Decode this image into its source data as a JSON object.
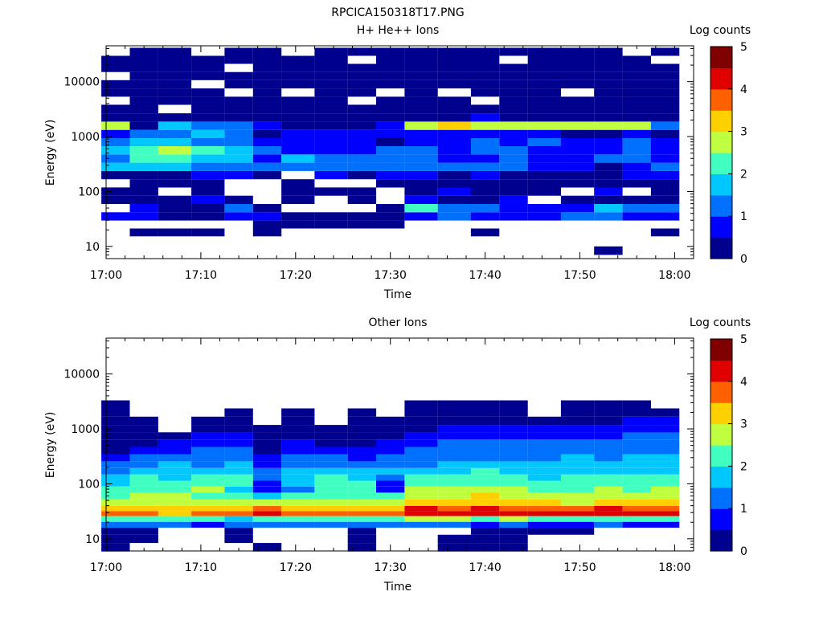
{
  "figure": {
    "title": "RPCICA150318T17.PNG"
  },
  "palette": [
    "#00008f",
    "#0000ff",
    "#0070ff",
    "#00c8ff",
    "#40ffc0",
    "#c0ff40",
    "#ffd000",
    "#ff6000",
    "#e00000",
    "#800000"
  ],
  "chart_data": [
    {
      "type": "heatmap",
      "title": "H+ He++ Ions",
      "xlabel": "Time",
      "ylabel": "Energy (eV)",
      "x_ticks": [
        "17:00",
        "17:10",
        "17:20",
        "17:30",
        "17:40",
        "17:50",
        "18:00"
      ],
      "y_ticks": [
        "10",
        "100",
        "1000",
        "10000"
      ],
      "y_scale": "log",
      "ylim": [
        6,
        45000
      ],
      "xlim": [
        "17:00",
        "18:02"
      ],
      "colorbar": {
        "label": "Log counts",
        "ticks": [
          "0",
          "1",
          "2",
          "3",
          "4",
          "5"
        ],
        "range": [
          0,
          5
        ]
      },
      "time_columns": [
        "17:01",
        "17:04",
        "17:07",
        "17:11",
        "17:14",
        "17:17",
        "17:20",
        "17:24",
        "17:27",
        "17:30",
        "17:33",
        "17:37",
        "17:40",
        "17:43",
        "17:46",
        "17:50",
        "17:53",
        "17:56",
        "17:59"
      ],
      "energy_bins_eV": [
        18,
        25,
        35,
        50,
        70,
        100,
        140,
        200,
        280,
        400,
        560,
        800,
        1100,
        1600,
        2200,
        3200,
        4500,
        6300,
        9000,
        12600,
        17800,
        25000,
        35000
      ],
      "log_counts": [
        [
          null,
          0.0,
          0.0,
          0.0,
          null,
          0.0,
          null,
          null,
          null,
          null,
          null,
          null,
          0.0,
          null,
          null,
          null,
          null,
          null,
          0.0
        ],
        [
          null,
          null,
          null,
          null,
          null,
          0.0,
          0.0,
          0.0,
          0.0,
          0.0,
          null,
          null,
          null,
          null,
          null,
          null,
          null,
          null,
          null
        ],
        [
          0.8,
          0.6,
          0.2,
          0.0,
          0.8,
          0.5,
          0.0,
          0.0,
          0.3,
          0.4,
          0.8,
          1.0,
          0.9,
          0.9,
          0.6,
          1.0,
          1.2,
          0.7,
          0.8
        ],
        [
          null,
          0.9,
          0.3,
          0.2,
          1.3,
          0.0,
          null,
          null,
          null,
          0.0,
          2.0,
          1.4,
          1.2,
          0.8,
          0.9,
          0.7,
          1.6,
          1.0,
          1.3
        ],
        [
          0.4,
          0.0,
          0.4,
          0.5,
          0.0,
          null,
          0.2,
          null,
          0.3,
          null,
          0.5,
          0.3,
          0.0,
          0.5,
          null,
          0.0,
          0.2,
          0.0,
          0.3
        ],
        [
          0.0,
          0.0,
          null,
          0.0,
          null,
          null,
          0.0,
          0.0,
          0.0,
          null,
          0.0,
          0.5,
          0.0,
          0.4,
          0.0,
          null,
          0.5,
          null,
          0.0
        ],
        [
          null,
          0.0,
          0.0,
          0.0,
          null,
          null,
          0.0,
          null,
          null,
          0.0,
          0.3,
          0.0,
          0.2,
          0.0,
          0.0,
          0.0,
          0.0,
          0.0,
          0.0
        ],
        [
          0.2,
          0.0,
          0.4,
          0.8,
          0.5,
          0.0,
          null,
          0.6,
          0.0,
          0.5,
          0.5,
          0.3,
          0.7,
          0.2,
          0.3,
          0.0,
          0.4,
          0.8,
          0.5
        ],
        [
          1.5,
          1.8,
          1.6,
          1.2,
          1.0,
          1.2,
          1.0,
          1.0,
          1.2,
          1.2,
          1.0,
          1.0,
          1.2,
          1.0,
          0.9,
          0.5,
          0.4,
          0.9,
          1.0
        ],
        [
          1.2,
          2.2,
          2.3,
          1.5,
          1.6,
          0.6,
          1.5,
          1.1,
          1.1,
          1.0,
          1.2,
          0.8,
          0.9,
          1.2,
          0.5,
          0.7,
          1.0,
          1.3,
          0.5
        ],
        [
          1.5,
          2.4,
          2.6,
          2.0,
          1.6,
          1.2,
          0.8,
          0.6,
          0.8,
          1.2,
          1.0,
          0.9,
          1.0,
          1.0,
          0.7,
          0.6,
          0.8,
          1.1,
          0.6
        ],
        [
          1.0,
          1.5,
          1.8,
          1.3,
          1.1,
          0.9,
          0.5,
          0.6,
          0.8,
          0.4,
          0.9,
          0.9,
          1.3,
          0.9,
          1.0,
          0.7,
          0.6,
          1.3,
          0.5
        ],
        [
          0.9,
          1.1,
          1.4,
          1.8,
          1.2,
          0.4,
          0.6,
          0.8,
          0.6,
          0.5,
          0.9,
          0.7,
          0.8,
          0.6,
          0.5,
          0.0,
          0.4,
          0.5,
          0.0
        ],
        [
          2.8,
          0.0,
          1.5,
          1.4,
          1.3,
          0.6,
          0.4,
          0.3,
          0.3,
          0.6,
          2.9,
          3.0,
          2.7,
          2.5,
          2.5,
          2.9,
          2.6,
          2.7,
          1.2
        ],
        [
          0.0,
          0.0,
          0.0,
          0.0,
          0.0,
          0.0,
          0.0,
          0.0,
          0.0,
          0.0,
          0.0,
          0.0,
          0.6,
          0.0,
          0.0,
          0.0,
          0.0,
          0.0,
          0.0
        ],
        [
          0.0,
          0.0,
          null,
          0.0,
          0.0,
          0.0,
          0.0,
          0.0,
          0.0,
          0.0,
          0.0,
          0.0,
          0.0,
          0.0,
          0.0,
          0.0,
          0.0,
          0.0,
          0.0
        ],
        [
          null,
          0.0,
          0.0,
          0.0,
          0.0,
          0.0,
          0.0,
          0.0,
          null,
          0.0,
          0.0,
          0.0,
          null,
          0.0,
          0.0,
          0.0,
          0.0,
          0.0,
          0.0
        ],
        [
          0.0,
          0.0,
          0.0,
          0.0,
          null,
          0.0,
          null,
          0.0,
          0.0,
          null,
          0.0,
          null,
          0.0,
          0.0,
          0.0,
          null,
          0.0,
          0.0,
          0.0
        ],
        [
          0.0,
          0.0,
          0.0,
          null,
          0.0,
          0.0,
          0.0,
          0.0,
          0.0,
          0.0,
          0.0,
          0.0,
          0.0,
          0.0,
          0.0,
          0.0,
          0.0,
          0.0,
          0.0
        ],
        [
          null,
          0.0,
          0.0,
          0.0,
          0.0,
          0.0,
          0.0,
          0.0,
          0.0,
          0.0,
          0.0,
          0.0,
          0.0,
          0.0,
          0.0,
          0.0,
          0.0,
          0.0,
          0.0
        ],
        [
          0.0,
          0.0,
          0.0,
          0.0,
          null,
          0.0,
          0.0,
          0.0,
          0.0,
          0.0,
          0.0,
          0.0,
          0.0,
          0.0,
          0.0,
          0.0,
          0.0,
          0.0,
          0.0
        ],
        [
          0.0,
          0.0,
          0.0,
          0.0,
          0.0,
          0.0,
          0.0,
          0.0,
          null,
          0.0,
          0.0,
          0.0,
          0.0,
          null,
          0.0,
          0.0,
          0.0,
          0.0,
          null
        ],
        [
          null,
          0.0,
          0.0,
          null,
          0.0,
          0.0,
          null,
          0.0,
          0.0,
          0.0,
          0.0,
          0.0,
          0.0,
          0.0,
          0.0,
          0.0,
          0.0,
          null,
          0.0
        ]
      ],
      "extra_cells": [
        {
          "time": "17:53",
          "energy_bins_eV": [
            7,
            10
          ],
          "log_counts": 0.0
        }
      ]
    },
    {
      "type": "heatmap",
      "title": "Other Ions",
      "xlabel": "Time",
      "ylabel": "Energy (eV)",
      "x_ticks": [
        "17:00",
        "17:10",
        "17:20",
        "17:30",
        "17:40",
        "17:50",
        "18:00"
      ],
      "y_ticks": [
        "10",
        "100",
        "1000",
        "10000"
      ],
      "y_scale": "log",
      "ylim": [
        6,
        45000
      ],
      "xlim": [
        "17:00",
        "18:02"
      ],
      "colorbar": {
        "label": "Log counts",
        "ticks": [
          "0",
          "1",
          "2",
          "3",
          "4",
          "5"
        ],
        "range": [
          0,
          5
        ]
      },
      "time_columns": [
        "17:01",
        "17:04",
        "17:07",
        "17:11",
        "17:14",
        "17:17",
        "17:20",
        "17:24",
        "17:27",
        "17:30",
        "17:33",
        "17:37",
        "17:40",
        "17:43",
        "17:46",
        "17:50",
        "17:53",
        "17:56",
        "17:59"
      ],
      "energy_bins_eV": [
        7,
        10,
        14,
        18,
        23,
        29,
        35,
        45,
        60,
        80,
        100,
        130,
        170,
        220,
        300,
        400,
        550,
        750,
        1000,
        1400,
        2000,
        2800
      ],
      "log_counts": [
        [
          0.0,
          null,
          null,
          null,
          null,
          0.0,
          null,
          null,
          0.0,
          null,
          null,
          0.0,
          0.0,
          0.0,
          null,
          null,
          null,
          null,
          null
        ],
        [
          0.0,
          0.0,
          null,
          null,
          0.0,
          null,
          null,
          null,
          0.0,
          null,
          null,
          0.0,
          0.0,
          0.0,
          null,
          null,
          null,
          null,
          null
        ],
        [
          0.0,
          0.0,
          null,
          null,
          0.0,
          null,
          null,
          null,
          0.0,
          null,
          null,
          null,
          0.0,
          0.0,
          0.0,
          0.0,
          null,
          null,
          null
        ],
        [
          1.0,
          1.0,
          1.0,
          0.8,
          1.0,
          1.2,
          1.0,
          1.2,
          1.0,
          1.0,
          1.2,
          1.0,
          0.8,
          1.0,
          0.8,
          0.8,
          1.0,
          0.8,
          0.8
        ],
        [
          2.0,
          2.0,
          2.2,
          2.0,
          1.8,
          2.0,
          2.0,
          2.2,
          2.0,
          2.2,
          2.5,
          2.5,
          2.4,
          2.5,
          2.2,
          2.2,
          2.4,
          2.2,
          2.2
        ],
        [
          3.8,
          3.6,
          3.4,
          3.6,
          3.5,
          4.0,
          3.6,
          3.8,
          3.6,
          3.5,
          4.2,
          4.2,
          4.0,
          4.3,
          4.0,
          4.0,
          4.2,
          4.0,
          4.0
        ],
        [
          3.2,
          3.4,
          3.2,
          3.0,
          3.3,
          3.5,
          3.2,
          3.0,
          3.2,
          3.4,
          4.0,
          3.8,
          4.0,
          3.8,
          3.8,
          3.6,
          4.2,
          3.8,
          3.6
        ],
        [
          2.6,
          2.8,
          2.8,
          2.6,
          2.6,
          2.8,
          2.6,
          2.5,
          2.6,
          2.8,
          3.2,
          3.2,
          3.4,
          3.0,
          3.0,
          2.8,
          3.2,
          3.2,
          3.0
        ],
        [
          2.4,
          2.6,
          2.5,
          2.4,
          2.4,
          1.5,
          2.2,
          2.4,
          2.4,
          2.0,
          2.8,
          2.8,
          3.0,
          2.8,
          2.6,
          2.6,
          2.8,
          2.8,
          2.8
        ],
        [
          2.0,
          2.2,
          2.4,
          2.6,
          1.8,
          0.8,
          1.2,
          2.0,
          2.2,
          0.8,
          2.6,
          2.6,
          2.6,
          2.6,
          2.4,
          2.4,
          2.6,
          2.4,
          2.6
        ],
        [
          1.8,
          2.2,
          2.2,
          2.4,
          2.4,
          0.6,
          1.5,
          2.2,
          2.0,
          0.6,
          2.4,
          2.4,
          2.4,
          2.2,
          2.2,
          2.0,
          2.4,
          2.2,
          2.2
        ],
        [
          1.5,
          2.0,
          1.8,
          2.2,
          2.0,
          1.2,
          1.8,
          2.0,
          1.8,
          1.0,
          2.0,
          2.2,
          2.2,
          2.0,
          1.8,
          2.0,
          2.2,
          2.0,
          2.0
        ],
        [
          1.2,
          1.6,
          1.6,
          1.8,
          1.8,
          1.0,
          1.5,
          1.6,
          1.6,
          1.5,
          1.8,
          1.8,
          2.0,
          1.8,
          1.6,
          1.8,
          1.8,
          1.8,
          1.8
        ],
        [
          1.0,
          1.3,
          1.5,
          1.4,
          1.5,
          0.8,
          1.2,
          1.3,
          1.2,
          1.2,
          1.4,
          1.6,
          1.6,
          1.6,
          1.5,
          1.6,
          1.6,
          1.6,
          1.6
        ],
        [
          0.5,
          1.0,
          1.0,
          1.2,
          1.2,
          0.6,
          1.0,
          1.0,
          0.8,
          1.0,
          1.2,
          1.4,
          1.4,
          1.4,
          1.3,
          1.5,
          1.4,
          1.5,
          1.5
        ],
        [
          0.3,
          0.6,
          0.8,
          1.0,
          1.0,
          0.4,
          0.8,
          0.6,
          0.6,
          0.8,
          1.0,
          1.2,
          1.2,
          1.2,
          1.1,
          1.3,
          1.2,
          1.4,
          1.4
        ],
        [
          0.2,
          0.4,
          0.6,
          0.8,
          0.8,
          0.3,
          0.6,
          0.4,
          0.4,
          0.5,
          0.8,
          1.0,
          1.0,
          1.0,
          1.0,
          1.0,
          1.0,
          1.2,
          1.2
        ],
        [
          0.0,
          0.2,
          0.4,
          0.5,
          0.6,
          0.2,
          0.4,
          0.2,
          0.3,
          0.3,
          0.6,
          0.8,
          0.8,
          0.8,
          0.8,
          0.8,
          0.8,
          1.0,
          1.0
        ],
        [
          0.0,
          0.0,
          null,
          0.3,
          0.4,
          0.0,
          0.2,
          0.0,
          0.2,
          0.2,
          0.4,
          0.6,
          0.6,
          0.6,
          0.6,
          0.6,
          0.6,
          0.8,
          0.8
        ],
        [
          0.0,
          0.0,
          null,
          0.0,
          0.2,
          null,
          0.0,
          null,
          0.0,
          0.0,
          0.0,
          0.3,
          0.4,
          0.3,
          0.2,
          0.4,
          0.4,
          0.6,
          0.6
        ],
        [
          0.0,
          null,
          null,
          null,
          0.0,
          null,
          0.0,
          null,
          0.0,
          null,
          0.0,
          0.0,
          0.0,
          0.0,
          null,
          0.0,
          0.0,
          0.3,
          0.3
        ],
        [
          0.0,
          null,
          null,
          null,
          null,
          null,
          null,
          null,
          null,
          null,
          0.0,
          0.0,
          0.0,
          0.0,
          null,
          0.0,
          0.0,
          0.0,
          null
        ]
      ]
    }
  ]
}
